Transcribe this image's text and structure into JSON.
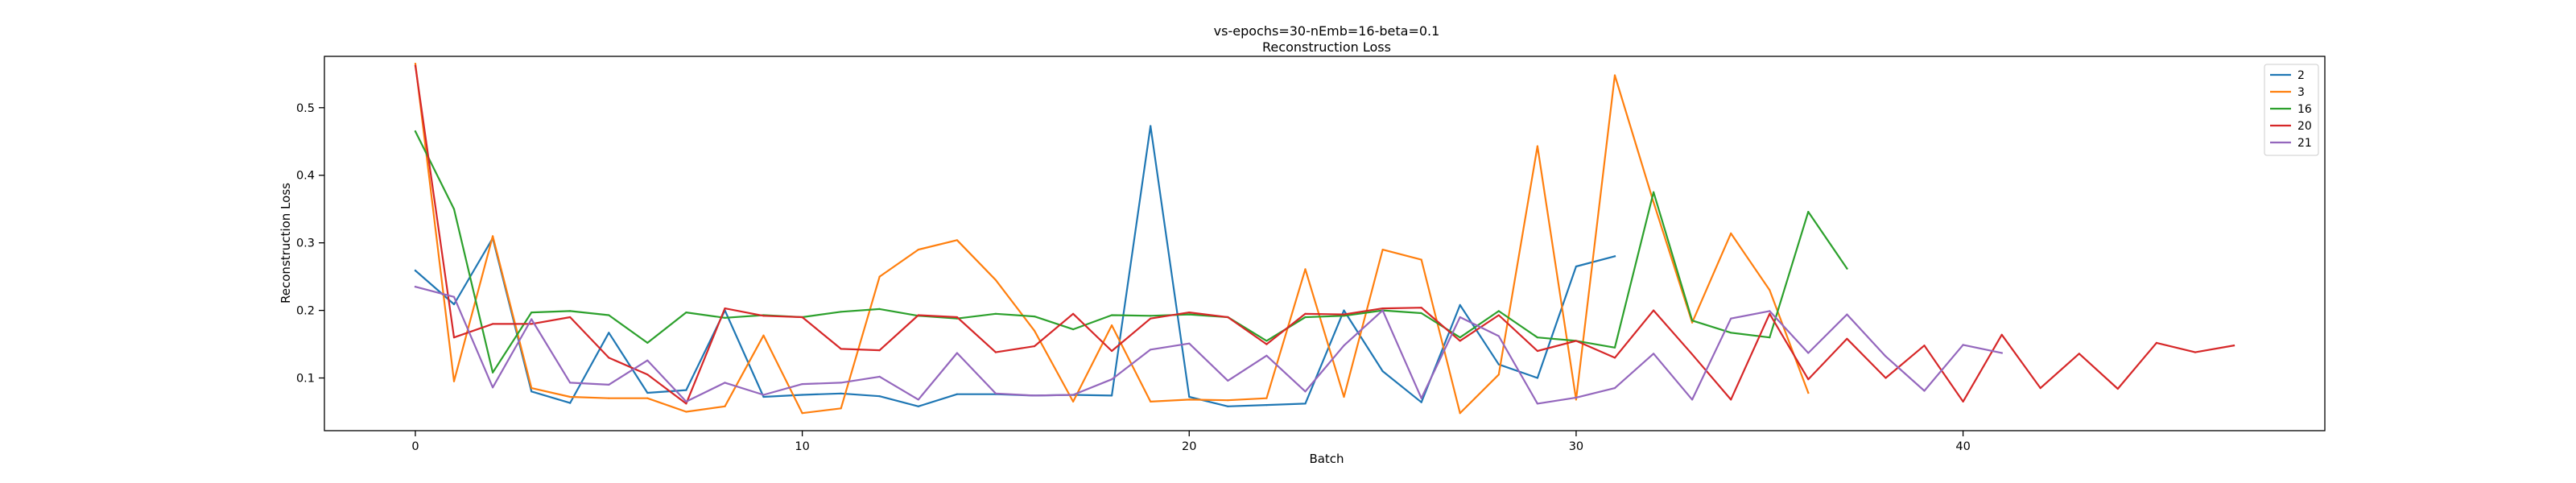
{
  "chart_data": {
    "type": "line",
    "title": "vs-epochs=30-nEmb=16-beta=0.1",
    "subtitle": "Reconstruction Loss",
    "xlabel": "Batch",
    "ylabel": "Reconstruction Loss",
    "xlim": [
      -2.35,
      49.35
    ],
    "ylim": [
      0.022,
      0.576
    ],
    "xticks": [
      0,
      10,
      20,
      30,
      40
    ],
    "yticks": [
      0.1,
      0.2,
      0.3,
      0.4,
      0.5
    ],
    "grid": false,
    "legend_position": "top-right",
    "series": [
      {
        "name": "2",
        "color": "#1f77b4",
        "values": [
          0.259,
          0.209,
          0.307,
          0.08,
          0.063,
          0.167,
          0.078,
          0.082,
          0.2,
          0.072,
          0.075,
          0.077,
          0.073,
          0.058,
          0.076,
          0.076,
          0.074,
          0.075,
          0.074,
          0.473,
          0.072,
          0.058,
          0.06,
          0.062,
          0.2,
          0.11,
          0.064,
          0.208,
          0.12,
          0.1,
          0.265,
          0.28
        ]
      },
      {
        "name": "3",
        "color": "#ff7f0e",
        "values": [
          0.565,
          0.095,
          0.31,
          0.085,
          0.072,
          0.07,
          0.07,
          0.05,
          0.058,
          0.163,
          0.048,
          0.055,
          0.25,
          0.29,
          0.304,
          0.245,
          0.17,
          0.065,
          0.178,
          0.065,
          0.068,
          0.067,
          0.07,
          0.261,
          0.072,
          0.29,
          0.275,
          0.048,
          0.105,
          0.443,
          0.068,
          0.548,
          0.36,
          0.182,
          0.314,
          0.23,
          0.078
        ]
      },
      {
        "name": "16",
        "color": "#2ca02c",
        "values": [
          0.465,
          0.35,
          0.108,
          0.197,
          0.199,
          0.193,
          0.152,
          0.197,
          0.189,
          0.193,
          0.19,
          0.198,
          0.202,
          0.192,
          0.188,
          0.195,
          0.191,
          0.172,
          0.193,
          0.192,
          0.194,
          0.19,
          0.155,
          0.19,
          0.192,
          0.2,
          0.196,
          0.16,
          0.199,
          0.16,
          0.155,
          0.145,
          0.375,
          0.185,
          0.167,
          0.16,
          0.346,
          0.262
        ]
      },
      {
        "name": "20",
        "color": "#d62728",
        "values": [
          0.562,
          0.16,
          0.18,
          0.18,
          0.19,
          0.13,
          0.105,
          0.062,
          0.203,
          0.192,
          0.19,
          0.143,
          0.141,
          0.193,
          0.19,
          0.138,
          0.147,
          0.195,
          0.14,
          0.188,
          0.197,
          0.19,
          0.15,
          0.195,
          0.194,
          0.203,
          0.204,
          0.155,
          0.193,
          0.14,
          0.155,
          0.13,
          0.2,
          0.135,
          0.068,
          0.195,
          0.098,
          0.158,
          0.1,
          0.148,
          0.065,
          0.164,
          0.085,
          0.136,
          0.084,
          0.152,
          0.138,
          0.148
        ]
      },
      {
        "name": "21",
        "color": "#9467bd",
        "values": [
          0.235,
          0.22,
          0.086,
          0.187,
          0.093,
          0.09,
          0.126,
          0.065,
          0.093,
          0.075,
          0.091,
          0.093,
          0.102,
          0.068,
          0.137,
          0.077,
          0.074,
          0.075,
          0.098,
          0.142,
          0.151,
          0.096,
          0.133,
          0.08,
          0.148,
          0.2,
          0.07,
          0.19,
          0.162,
          0.062,
          0.071,
          0.085,
          0.136,
          0.068,
          0.188,
          0.199,
          0.137,
          0.194,
          0.132,
          0.081,
          0.149,
          0.137
        ]
      }
    ]
  }
}
